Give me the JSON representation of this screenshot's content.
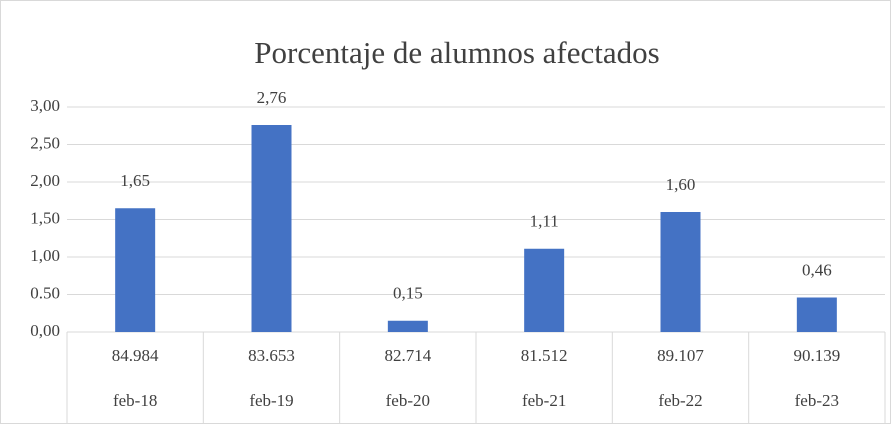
{
  "chart_data": {
    "type": "bar",
    "title": "Porcentaje de alumnos afectados",
    "categories": [
      "feb-18",
      "feb-19",
      "feb-20",
      "feb-21",
      "feb-22",
      "feb-23"
    ],
    "subcategories": [
      "84.984",
      "83.653",
      "82.714",
      "81.512",
      "89.107",
      "90.139"
    ],
    "values": [
      1.65,
      2.76,
      0.15,
      1.11,
      1.6,
      0.46
    ],
    "value_labels": [
      "1,65",
      "2,76",
      "0,15",
      "1,11",
      "1,60",
      "0,46"
    ],
    "color": "#4472c4",
    "ylim": [
      0,
      3
    ],
    "yticks": [
      {
        "value": 0,
        "label": "0,00"
      },
      {
        "value": 0.5,
        "label": "0.50"
      },
      {
        "value": 1,
        "label": "1,00"
      },
      {
        "value": 1.5,
        "label": "1,50"
      },
      {
        "value": 2,
        "label": "2,00"
      },
      {
        "value": 2.5,
        "label": "2,50"
      },
      {
        "value": 3,
        "label": "3,00"
      }
    ],
    "grid": true
  }
}
